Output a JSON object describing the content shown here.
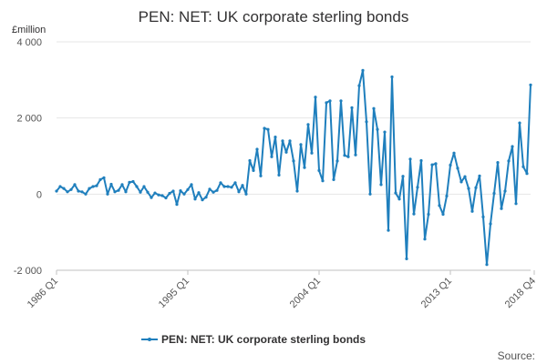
{
  "chart_data": {
    "type": "line",
    "title": "PEN: NET: UK corporate sterling bonds",
    "unit_label": "£million",
    "xlabel": "",
    "ylabel": "",
    "ylim": [
      -2000,
      4000
    ],
    "y_ticks": [
      -2000,
      0,
      2000,
      4000
    ],
    "y_tick_labels": [
      "-2 000",
      "0",
      "2 000",
      "4 000"
    ],
    "x_tick_labels": [
      "1986 Q1",
      "1995 Q1",
      "2004 Q1",
      "2013 Q1",
      "2018 Q4"
    ],
    "x_tick_indices": [
      0,
      36,
      72,
      108,
      131
    ],
    "grid": "horizontal",
    "legend_position": "bottom",
    "series": [
      {
        "name": "PEN: NET: UK corporate sterling bonds",
        "color": "#1f7fbd",
        "x_start": "1986 Q1",
        "values": [
          80,
          200,
          150,
          60,
          120,
          250,
          80,
          60,
          0,
          150,
          200,
          220,
          380,
          430,
          0,
          260,
          60,
          100,
          250,
          60,
          310,
          330,
          200,
          50,
          200,
          50,
          -90,
          30,
          -20,
          -40,
          -100,
          20,
          80,
          -270,
          90,
          0,
          120,
          250,
          -130,
          40,
          -150,
          -80,
          130,
          50,
          100,
          300,
          200,
          200,
          180,
          300,
          60,
          230,
          0,
          880,
          620,
          1180,
          480,
          1730,
          1700,
          980,
          1500,
          500,
          1400,
          1100,
          1400,
          870,
          80,
          1300,
          700,
          1830,
          1080,
          2550,
          620,
          350,
          2400,
          2450,
          380,
          870,
          2450,
          1020,
          980,
          2270,
          1030,
          2850,
          3250,
          1900,
          0,
          2250,
          1700,
          250,
          1630,
          -950,
          3080,
          30,
          -130,
          470,
          -1700,
          920,
          -520,
          180,
          880,
          -1180,
          -530,
          770,
          800,
          -300,
          -530,
          -50,
          760,
          1080,
          680,
          320,
          460,
          150,
          -450,
          170,
          480,
          -600,
          -1850,
          -780,
          20,
          830,
          -380,
          80,
          870,
          1250,
          -250,
          1870,
          720,
          540,
          2870
        ]
      }
    ],
    "source_label": "Source:"
  }
}
